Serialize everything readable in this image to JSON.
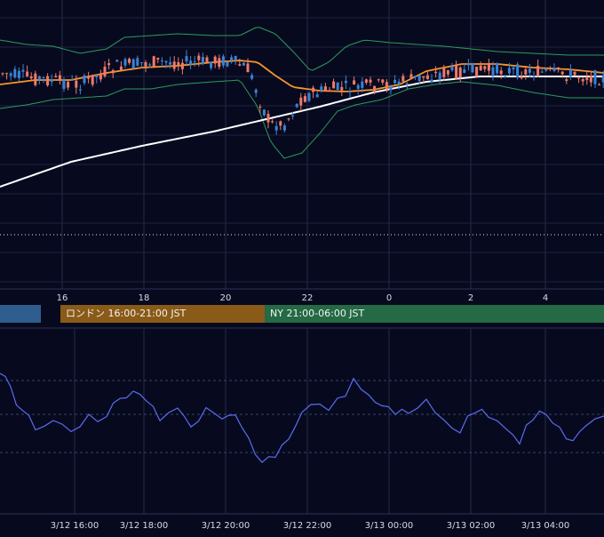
{
  "chart_data": [
    {
      "type": "candlestick",
      "panel": "price",
      "x_ticks": [
        "16",
        "18",
        "20",
        "22",
        "0",
        "2",
        "4"
      ],
      "grid": true,
      "overlays": [
        {
          "kind": "bollinger_upper",
          "color": "#2e9a5b"
        },
        {
          "kind": "bollinger_lower",
          "color": "#2e9a5b"
        },
        {
          "kind": "moving_average_short",
          "color": "#f5952a"
        },
        {
          "kind": "moving_average_long",
          "color": "#ffffff"
        }
      ],
      "candle_colors": {
        "up": "#3b82d6",
        "down": "#f07a6a"
      },
      "horizontal_line": {
        "style": "dotted",
        "color": "#e6e6e6"
      }
    },
    {
      "type": "table",
      "panel": "sessions",
      "sessions": [
        {
          "label": "",
          "color": "#2f5d8d"
        },
        {
          "label": "ロンドン 16:00-21:00 JST",
          "color": "#8a5a18"
        },
        {
          "label": "NY 21:00-06:00 JST",
          "color": "#246a44"
        }
      ]
    },
    {
      "type": "line",
      "panel": "oscillator",
      "color": "#5b6cf0",
      "x_ticks": [
        "3/12 16:00",
        "3/12 18:00",
        "3/12 20:00",
        "3/12 22:00",
        "3/13 00:00",
        "3/13 02:00",
        "3/13 04:00"
      ]
    }
  ]
}
